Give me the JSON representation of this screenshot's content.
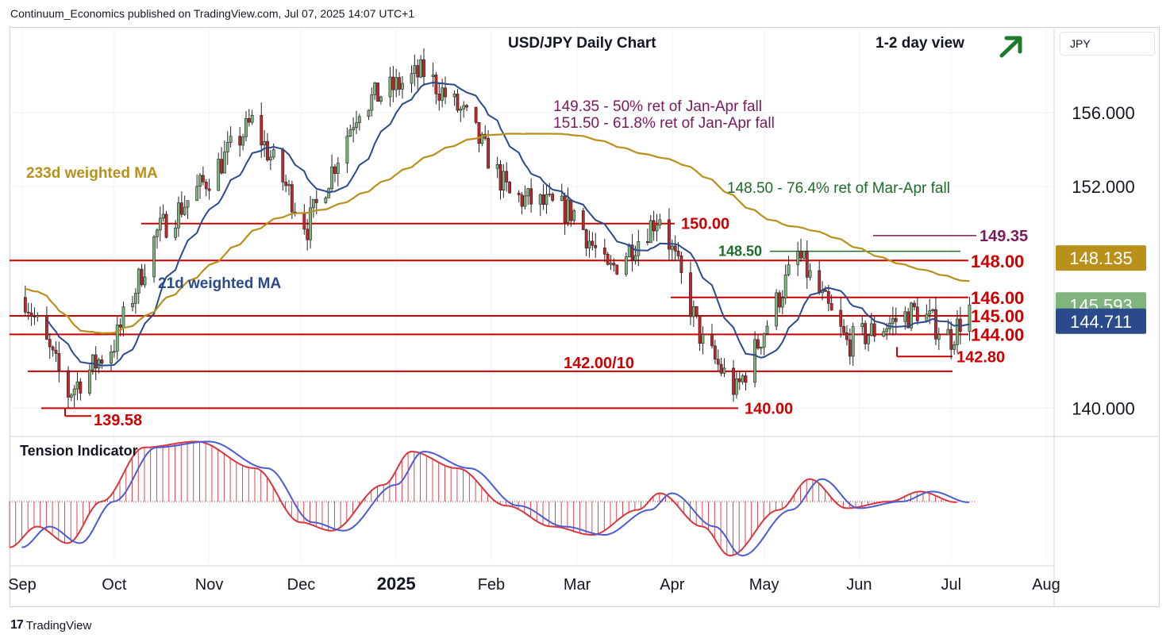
{
  "publisher": "Continuum_Economics published on TradingView.com, Jul 07, 2025 14:07 UTC+1",
  "currency": "JPY",
  "brand": "TradingView",
  "colors": {
    "up_candle": "#7fb47c",
    "down_candle": "#c0262c",
    "level_line": "#cc0000",
    "ma21": "#2b4a8c",
    "ma233": "#b8901a",
    "tension_hist": "#d9363e",
    "tension_signal": "#4b5bd6",
    "fib_purple": "#7a1a5a",
    "fib_green": "#1f6b2b",
    "arrow_green": "#1f7a2e"
  },
  "chart_data": [
    {
      "type": "candlestick",
      "title": "USD/JPY Daily Chart",
      "view_label": "1-2 day view",
      "view_arrow": "up-right-arrow-icon",
      "x_tick_labels": [
        "Sep",
        "Oct",
        "Nov",
        "Dec",
        "2025",
        "Feb",
        "Mar",
        "Apr",
        "May",
        "Jun",
        "Jul",
        "Aug"
      ],
      "y_tick_labels": [
        "156.000",
        "152.000",
        "140.000"
      ],
      "ylim": [
        138.6,
        160.6
      ],
      "price_path": [
        {
          "date": "2024-09-02",
          "close": 146.0
        },
        {
          "date": "2024-09-16",
          "close": 140.8
        },
        {
          "date": "2024-10-01",
          "close": 143.5
        },
        {
          "date": "2024-10-15",
          "close": 149.5
        },
        {
          "date": "2024-11-01",
          "close": 152.5
        },
        {
          "date": "2024-11-15",
          "close": 155.5
        },
        {
          "date": "2024-12-03",
          "close": 149.8
        },
        {
          "date": "2024-12-20",
          "close": 156.4
        },
        {
          "date": "2025-01-10",
          "close": 158.2
        },
        {
          "date": "2025-01-24",
          "close": 155.7
        },
        {
          "date": "2025-02-07",
          "close": 151.5
        },
        {
          "date": "2025-02-28",
          "close": 150.6
        },
        {
          "date": "2025-03-11",
          "close": 147.3
        },
        {
          "date": "2025-03-28",
          "close": 150.5
        },
        {
          "date": "2025-04-11",
          "close": 143.5
        },
        {
          "date": "2025-04-22",
          "close": 140.9
        },
        {
          "date": "2025-05-12",
          "close": 148.3
        },
        {
          "date": "2025-05-28",
          "close": 143.5
        },
        {
          "date": "2025-06-20",
          "close": 145.3
        },
        {
          "date": "2025-07-01",
          "close": 143.8
        },
        {
          "date": "2025-07-07",
          "close": 145.6
        }
      ],
      "series": [
        {
          "name": "21d weighted MA",
          "color_key": "ma21"
        },
        {
          "name": "233d weighted MA",
          "color_key": "ma233"
        }
      ],
      "horizontal_levels": [
        {
          "label": "150.00",
          "value": 150.0
        },
        {
          "label": "148.00",
          "value": 148.0
        },
        {
          "label": "146.00",
          "value": 146.0
        },
        {
          "label": "145.00",
          "value": 145.0
        },
        {
          "label": "144.00",
          "value": 144.0
        },
        {
          "label": "142.80",
          "value": 142.8
        },
        {
          "label": "142.00/10",
          "value": 142.0
        },
        {
          "label": "140.00",
          "value": 140.0
        },
        {
          "label": "139.58",
          "value": 139.58
        },
        {
          "label": "149.35",
          "value": 149.35
        },
        {
          "label": "148.50",
          "value": 148.5
        }
      ],
      "annotations": [
        "149.35 - 50% ret of Jan-Apr fall",
        "151.50 - 61.8% ret of Jan-Apr fall",
        "148.50 - 76.4% ret of Mar-Apr fall"
      ],
      "price_badges": [
        {
          "label": "148.135",
          "value": 148.135,
          "color_key": "ma233"
        },
        {
          "label": "145.593",
          "value": 145.593,
          "color_key": "up_candle"
        },
        {
          "label": "144.711",
          "value": 144.711,
          "color_key": "ma21"
        }
      ]
    },
    {
      "type": "histogram",
      "title": "Tension Indicator",
      "series": [
        {
          "name": "Tension Indicator",
          "color_key": "tension_hist"
        }
      ],
      "points": [
        {
          "date": "2024-09-01",
          "value": -0.55
        },
        {
          "date": "2024-09-10",
          "value": -0.3
        },
        {
          "date": "2024-09-20",
          "value": -0.5
        },
        {
          "date": "2024-10-01",
          "value": 0.0
        },
        {
          "date": "2024-10-15",
          "value": 0.65
        },
        {
          "date": "2024-11-01",
          "value": 0.72
        },
        {
          "date": "2024-11-20",
          "value": 0.4
        },
        {
          "date": "2024-12-05",
          "value": -0.25
        },
        {
          "date": "2024-12-15",
          "value": -0.35
        },
        {
          "date": "2025-01-01",
          "value": 0.2
        },
        {
          "date": "2025-01-10",
          "value": 0.6
        },
        {
          "date": "2025-01-25",
          "value": 0.4
        },
        {
          "date": "2025-02-10",
          "value": -0.05
        },
        {
          "date": "2025-02-25",
          "value": -0.3
        },
        {
          "date": "2025-03-10",
          "value": -0.4
        },
        {
          "date": "2025-03-25",
          "value": -0.1
        },
        {
          "date": "2025-04-01",
          "value": 0.1
        },
        {
          "date": "2025-04-15",
          "value": -0.3
        },
        {
          "date": "2025-04-24",
          "value": -0.65
        },
        {
          "date": "2025-05-10",
          "value": -0.1
        },
        {
          "date": "2025-05-20",
          "value": 0.27
        },
        {
          "date": "2025-06-01",
          "value": -0.08
        },
        {
          "date": "2025-06-15",
          "value": 0.0
        },
        {
          "date": "2025-06-25",
          "value": 0.12
        },
        {
          "date": "2025-07-07",
          "value": -0.01
        }
      ]
    }
  ]
}
